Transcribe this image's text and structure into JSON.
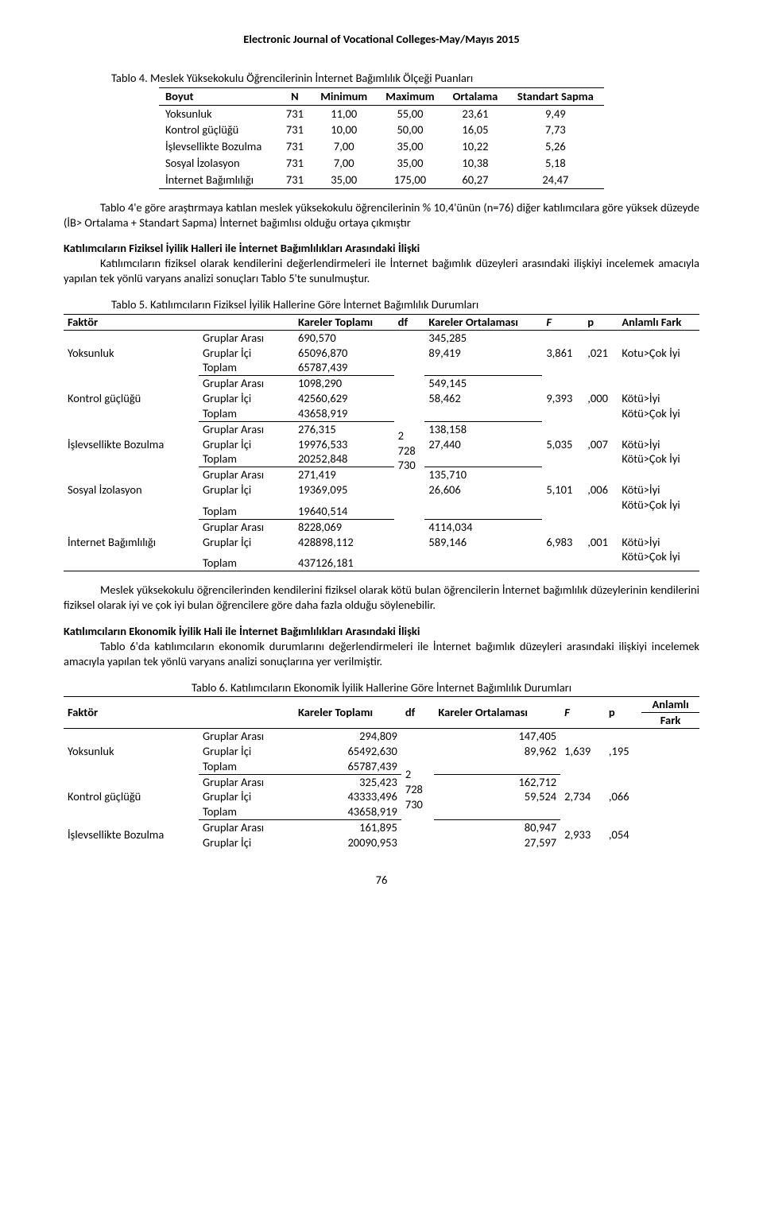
{
  "journal_header": "Electronic Journal of Vocational Colleges-May/Mayıs 2015",
  "page_number": "76",
  "table4": {
    "title": "Tablo 4. Meslek Yüksekokulu Öğrencilerinin İnternet Bağımlılık Ölçeği Puanları",
    "columns": [
      "Boyut",
      "N",
      "Minimum",
      "Maximum",
      "Ortalama",
      "Standart Sapma"
    ],
    "rows": [
      [
        "Yoksunluk",
        "731",
        "11,00",
        "55,00",
        "23,61",
        "9,49"
      ],
      [
        "Kontrol güçlüğü",
        "731",
        "10,00",
        "50,00",
        "16,05",
        "7,73"
      ],
      [
        "İşlevsellikte Bozulma",
        "731",
        "7,00",
        "35,00",
        "10,22",
        "5,26"
      ],
      [
        "Sosyal İzolasyon",
        "731",
        "7,00",
        "35,00",
        "10,38",
        "5,18"
      ],
      [
        "İnternet Bağımlılığı",
        "731",
        "35,00",
        "175,00",
        "60,27",
        "24,47"
      ]
    ]
  },
  "para1": "Tablo 4'e göre araştırmaya katılan meslek yüksekokulu öğrencilerinin % 10,4'ünün (n=76) diğer katılımcılara göre yüksek düzeyde (İB> Ortalama + Standart Sapma) İnternet bağımlısı olduğu ortaya çıkmıştır",
  "section1": {
    "heading": "Katılımcıların Fiziksel İyilik Halleri ile İnternet Bağımlılıkları Arasındaki İlişki",
    "para": "Katılımcıların fiziksel olarak kendilerini değerlendirmeleri ile İnternet bağımlık düzeyleri arasındaki ilişkiyi incelemek amacıyla yapılan tek yönlü varyans analizi sonuçları Tablo 5'te sunulmuştur."
  },
  "table5": {
    "title": "Tablo 5. Katılımcıların Fiziksel İyilik Hallerine Göre İnternet Bağımlılık Durumları",
    "head": {
      "c1": "Faktör",
      "c2": "",
      "c3": "Kareler Toplamı",
      "c4": "df",
      "c5": "Kareler Ortalaması",
      "c6": "F",
      "c7": "p",
      "c8": "Anlamlı Fark"
    },
    "df_col": [
      "2",
      "728",
      "730"
    ],
    "labels": {
      "ga": "Gruplar Arası",
      "gi": "Gruplar İçi",
      "t": "Toplam"
    },
    "groups": [
      {
        "name": "Yoksunluk",
        "ga_kt": "690,570",
        "ga_ko": "345,285",
        "gi_kt": "65096,870",
        "gi_ko": "89,419",
        "t_kt": "65787,439",
        "f": "3,861",
        "p": ",021",
        "fark": "Kotu>Çok İyi"
      },
      {
        "name": "Kontrol güçlüğü",
        "ga_kt": "1098,290",
        "ga_ko": "549,145",
        "gi_kt": "42560,629",
        "gi_ko": "58,462",
        "t_kt": "43658,919",
        "f": "9,393",
        "p": ",000",
        "fark1": "Kötü>İyi",
        "fark2": "Kötü>Çok İyi"
      },
      {
        "name": "İşlevsellikte Bozulma",
        "ga_kt": "276,315",
        "ga_ko": "138,158",
        "gi_kt": "19976,533",
        "gi_ko": "27,440",
        "t_kt": "20252,848",
        "f": "5,035",
        "p": ",007",
        "fark1": "Kötü>İyi",
        "fark2": "Kötü>Çok İyi"
      },
      {
        "name": "Sosyal İzolasyon",
        "ga_kt": "271,419",
        "ga_ko": "135,710",
        "gi_kt": "19369,095",
        "gi_ko": "26,606",
        "t_kt": "19640,514",
        "f": "5,101",
        "p": ",006",
        "fark1": "Kötü>İyi",
        "fark2": "Kötü>Çok İyi"
      },
      {
        "name": "İnternet Bağımlılığı",
        "ga_kt": "8228,069",
        "ga_ko": "4114,034",
        "gi_kt": "428898,112",
        "gi_ko": "589,146",
        "t_kt": "437126,181",
        "f": "6,983",
        "p": ",001",
        "fark1": "Kötü>İyi",
        "fark2": "Kötü>Çok İyi"
      }
    ]
  },
  "para2": "Meslek yüksekokulu öğrencilerinden kendilerini fiziksel olarak kötü bulan öğrencilerin İnternet bağımlılık düzeylerinin kendilerini fiziksel olarak iyi ve çok iyi bulan öğrencilere göre daha fazla olduğu söylenebilir.",
  "section2": {
    "heading": "Katılımcıların Ekonomik İyilik Hali ile İnternet Bağımlılıkları Arasındaki İlişki",
    "para": "Tablo 6'da katılımcıların ekonomik durumlarını değerlendirmeleri ile İnternet bağımlık düzeyleri arasındaki ilişkiyi incelemek amacıyla yapılan tek yönlü varyans analizi sonuçlarına yer verilmiştir."
  },
  "table6": {
    "title": "Tablo 6. Katılımcıların Ekonomik İyilik Hallerine Göre İnternet Bağımlılık Durumları",
    "head": {
      "c1": "Faktör",
      "c2": "",
      "c3": "Kareler Toplamı",
      "c4": "df",
      "c5": "Kareler Ortalaması",
      "c6": "F",
      "c7": "p",
      "c8a": "Anlamlı",
      "c8b": "Fark"
    },
    "df_col": [
      "2",
      "728",
      "730"
    ],
    "labels": {
      "ga": "Gruplar Arası",
      "gi": "Gruplar İçi",
      "t": "Toplam"
    },
    "groups": [
      {
        "name": "Yoksunluk",
        "ga_kt": "294,809",
        "ga_ko": "147,405",
        "gi_kt": "65492,630",
        "gi_ko": "89,962",
        "t_kt": "65787,439",
        "f": "1,639",
        "p": ",195"
      },
      {
        "name": "Kontrol güçlüğü",
        "ga_kt": "325,423",
        "ga_ko": "162,712",
        "gi_kt": "43333,496",
        "gi_ko": "59,524",
        "t_kt": "43658,919",
        "f": "2,734",
        "p": ",066"
      },
      {
        "name": "İşlevsellikte Bozulma",
        "ga_kt": "161,895",
        "ga_ko": "80,947",
        "gi_kt": "20090,953",
        "gi_ko": "27,597",
        "f": "2,933",
        "p": ",054"
      }
    ]
  }
}
